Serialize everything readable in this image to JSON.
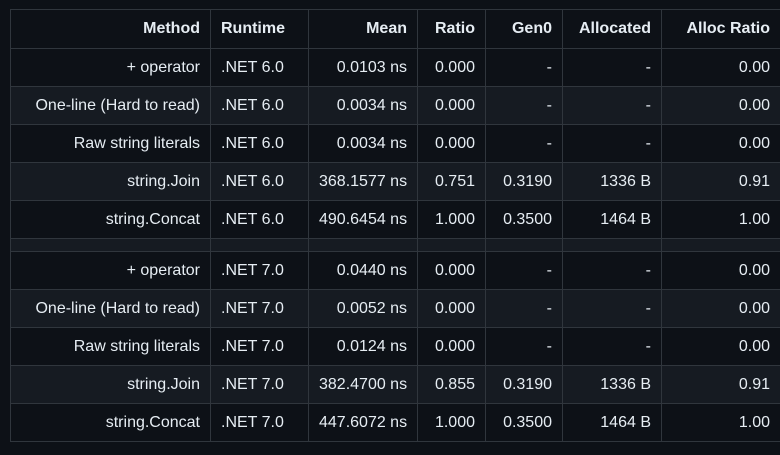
{
  "headers": [
    "Method",
    "Runtime",
    "Mean",
    "Ratio",
    "Gen0",
    "Allocated",
    "Alloc Ratio"
  ],
  "rows": [
    [
      "+ operator",
      ".NET 6.0",
      "0.0103 ns",
      "0.000",
      "-",
      "-",
      "0.00"
    ],
    [
      "One-line (Hard to read)",
      ".NET 6.0",
      "0.0034 ns",
      "0.000",
      "-",
      "-",
      "0.00"
    ],
    [
      "Raw string literals",
      ".NET 6.0",
      "0.0034 ns",
      "0.000",
      "-",
      "-",
      "0.00"
    ],
    [
      "string.Join",
      ".NET 6.0",
      "368.1577 ns",
      "0.751",
      "0.3190",
      "1336 B",
      "0.91"
    ],
    [
      "string.Concat",
      ".NET 6.0",
      "490.6454 ns",
      "1.000",
      "0.3500",
      "1464 B",
      "1.00"
    ],
    [
      "+ operator",
      ".NET 7.0",
      "0.0440 ns",
      "0.000",
      "-",
      "-",
      "0.00"
    ],
    [
      "One-line (Hard to read)",
      ".NET 7.0",
      "0.0052 ns",
      "0.000",
      "-",
      "-",
      "0.00"
    ],
    [
      "Raw string literals",
      ".NET 7.0",
      "0.0124 ns",
      "0.000",
      "-",
      "-",
      "0.00"
    ],
    [
      "string.Join",
      ".NET 7.0",
      "382.4700 ns",
      "0.855",
      "0.3190",
      "1336 B",
      "0.91"
    ],
    [
      "string.Concat",
      ".NET 7.0",
      "447.6072 ns",
      "1.000",
      "0.3500",
      "1464 B",
      "1.00"
    ]
  ],
  "colors": {
    "background": "#0d1117",
    "row_alt": "#161b22",
    "border": "#30363d",
    "text": "#e6edf3"
  }
}
